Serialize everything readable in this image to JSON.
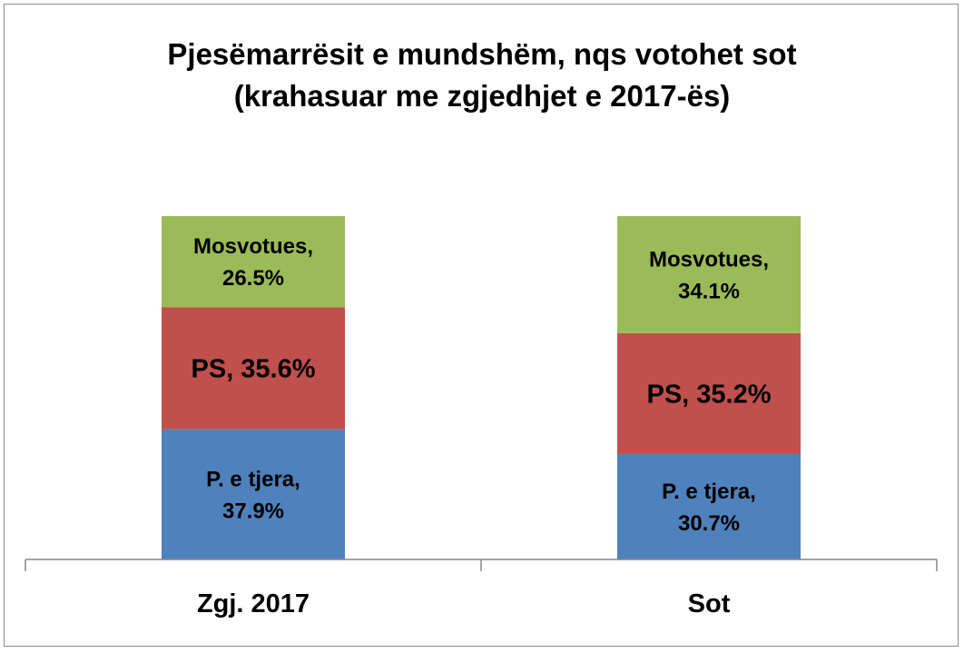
{
  "chart_data": {
    "type": "bar",
    "stacked": true,
    "normalized": true,
    "title": [
      "Pjesëmarrësit e mundshëm, nqs votohet sot",
      "(krahasuar me zgjedhjet e 2017-ës)"
    ],
    "categories": [
      "Zgj. 2017",
      "Sot"
    ],
    "ylim": [
      0,
      100
    ],
    "grid": false,
    "legend": "none",
    "series": [
      {
        "name": "P. e tjera",
        "color": "#4f81bd",
        "values": [
          37.9,
          30.7
        ],
        "labels": [
          [
            "P. e tjera,",
            "37.9%"
          ],
          [
            "P. e tjera,",
            "30.7%"
          ]
        ]
      },
      {
        "name": "PS",
        "color": "#c0504d",
        "values": [
          35.6,
          35.2
        ],
        "labels": [
          [
            "PS, 35.6%"
          ],
          [
            "PS, 35.2%"
          ]
        ]
      },
      {
        "name": "Mosvotues",
        "color": "#9bbb59",
        "values": [
          26.5,
          34.1
        ],
        "labels": [
          [
            "Mosvotues,",
            "26.5%"
          ],
          [
            "Mosvotues,",
            "34.1%"
          ]
        ]
      }
    ]
  }
}
